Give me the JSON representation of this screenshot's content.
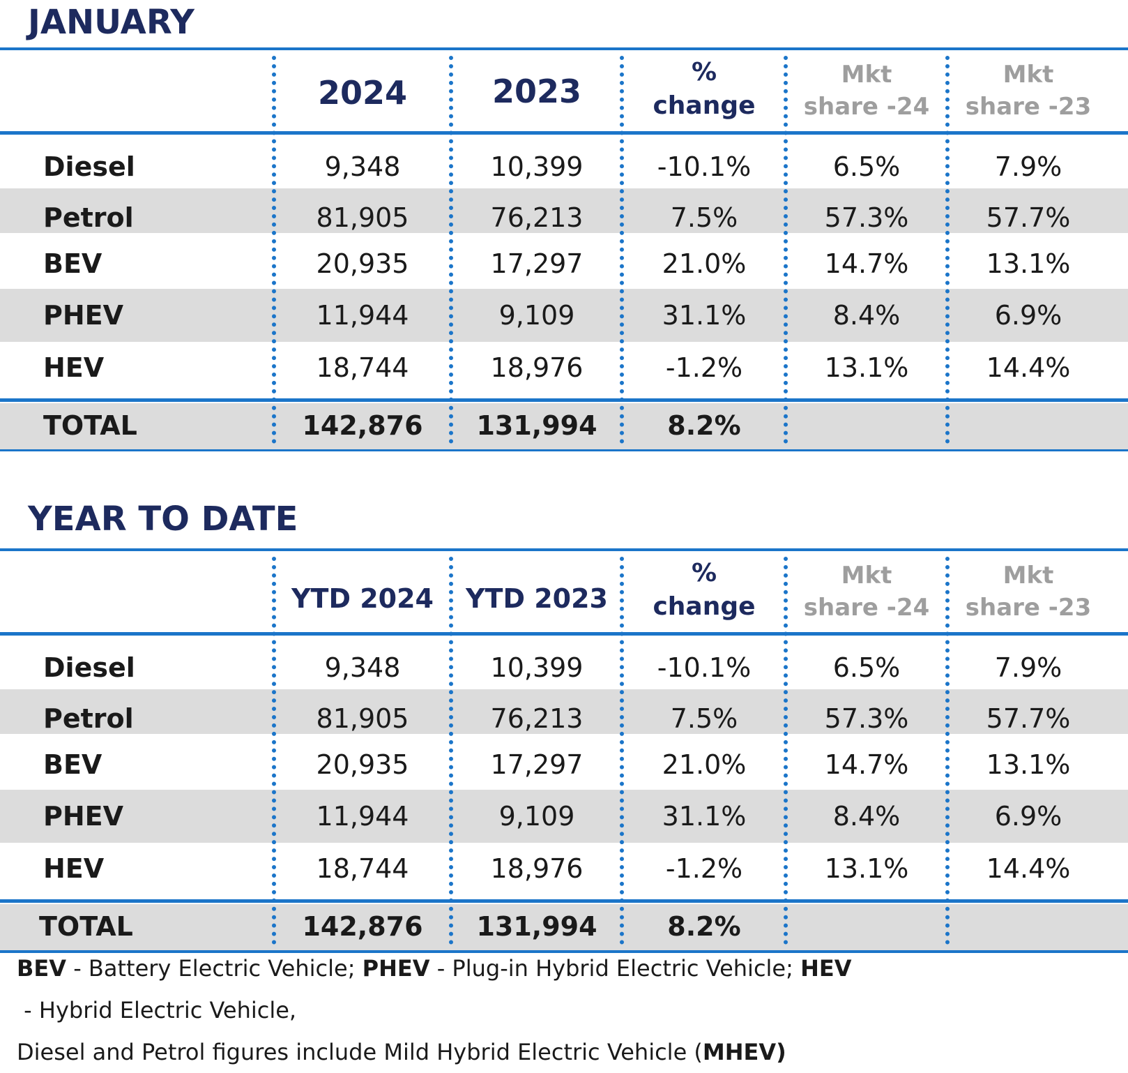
{
  "january": {
    "title": "JANUARY",
    "headers": {
      "col1": "2024",
      "col2": "2023",
      "pct_line1": "%",
      "pct_line2": "change",
      "mkt24_line1": "Mkt",
      "mkt24_line2": "share -24",
      "mkt23_line1": "Mkt",
      "mkt23_line2": "share -23"
    },
    "rows": [
      {
        "label": "Diesel",
        "v2024": "9,348",
        "v2023": "10,399",
        "change": "-10.1%",
        "share24": "6.5%",
        "share23": "7.9%"
      },
      {
        "label": "Petrol",
        "v2024": "81,905",
        "v2023": "76,213",
        "change": "7.5%",
        "share24": "57.3%",
        "share23": "57.7%"
      },
      {
        "label": "BEV",
        "v2024": "20,935",
        "v2023": "17,297",
        "change": "21.0%",
        "share24": "14.7%",
        "share23": "13.1%"
      },
      {
        "label": "PHEV",
        "v2024": "11,944",
        "v2023": "9,109",
        "change": "31.1%",
        "share24": "8.4%",
        "share23": "6.9%"
      },
      {
        "label": "HEV",
        "v2024": "18,744",
        "v2023": "18,976",
        "change": "-1.2%",
        "share24": "13.1%",
        "share23": "14.4%"
      }
    ],
    "total": {
      "label": "TOTAL",
      "v2024": "142,876",
      "v2023": "131,994",
      "change": "8.2%"
    }
  },
  "ytd": {
    "title": "YEAR TO DATE",
    "headers": {
      "col1": "YTD 2024",
      "col2": "YTD 2023",
      "pct_line1": "%",
      "pct_line2": "change",
      "mkt24_line1": "Mkt",
      "mkt24_line2": "share -24",
      "mkt23_line1": "Mkt",
      "mkt23_line2": "share -23"
    },
    "rows": [
      {
        "label": "Diesel",
        "v2024": "9,348",
        "v2023": "10,399",
        "change": "-10.1%",
        "share24": "6.5%",
        "share23": "7.9%"
      },
      {
        "label": "Petrol",
        "v2024": "81,905",
        "v2023": "76,213",
        "change": "7.5%",
        "share24": "57.3%",
        "share23": "57.7%"
      },
      {
        "label": "BEV",
        "v2024": "20,935",
        "v2023": "17,297",
        "change": "21.0%",
        "share24": "14.7%",
        "share23": "13.1%"
      },
      {
        "label": "PHEV",
        "v2024": "11,944",
        "v2023": "9,109",
        "change": "31.1%",
        "share24": "8.4%",
        "share23": "6.9%"
      },
      {
        "label": "HEV",
        "v2024": "18,744",
        "v2023": "18,976",
        "change": "-1.2%",
        "share24": "13.1%",
        "share23": "14.4%"
      }
    ],
    "total": {
      "label": "TOTAL",
      "v2024": "142,876",
      "v2023": "131,994",
      "change": "8.2%"
    }
  },
  "footnote": {
    "bev_abbr": "BEV",
    "bev_text": " - Battery Electric Vehicle; ",
    "phev_abbr": "PHEV",
    "phev_text": " - Plug-in Hybrid Electric Vehicle; ",
    "hev_abbr": "HEV",
    "hev_text": " - Hybrid Electric Vehicle,",
    "line2_text": "Diesel and Petrol figures include Mild Hybrid Electric Vehicle (",
    "mhev_abbr": "MHEV)"
  },
  "colors": {
    "accent_blue": "#1b75c9",
    "title_navy": "#1d2a5e",
    "row_shade": "#dcdcdc",
    "muted_gray": "#9e9e9e"
  }
}
